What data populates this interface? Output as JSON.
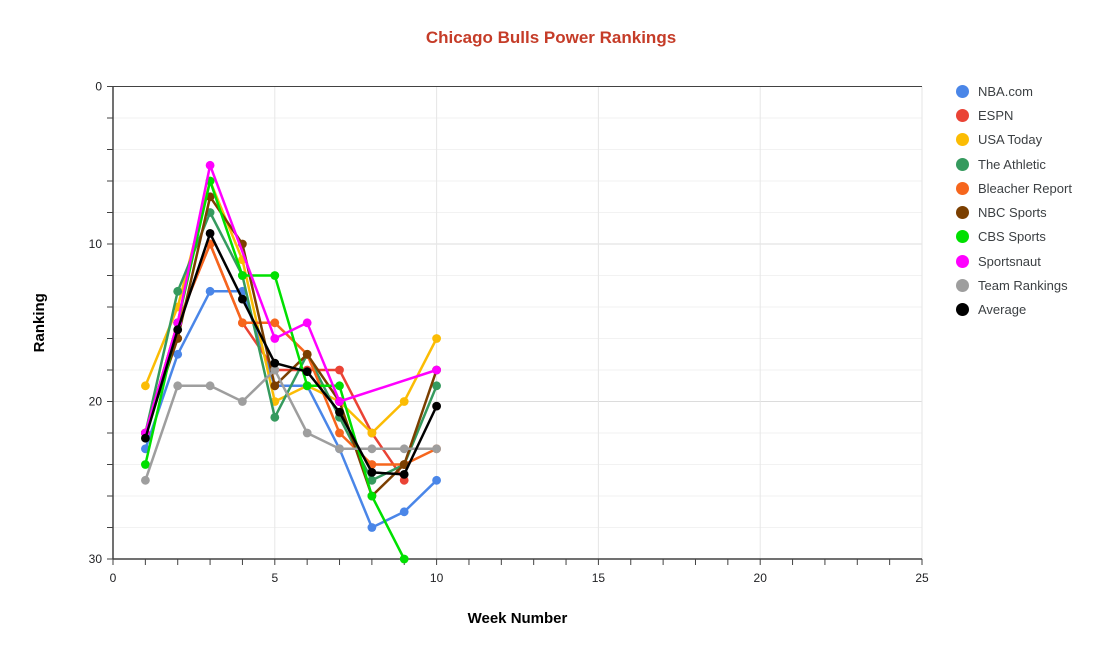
{
  "chart_data": {
    "type": "line",
    "title": "Chicago Bulls Power Rankings",
    "title_color": "#c53c28",
    "xlabel": "Week Number",
    "ylabel": "Ranking",
    "x": [
      1,
      2,
      3,
      4,
      5,
      6,
      7,
      8,
      9,
      10
    ],
    "xlim": [
      0,
      25
    ],
    "ylim": [
      0,
      30
    ],
    "y_axis_inverted": true,
    "grid": true,
    "x_major_ticks": [
      0,
      5,
      10,
      15,
      20,
      25
    ],
    "y_major_ticks": [
      0,
      10,
      20,
      30
    ],
    "x_minor_tick_step": 1,
    "y_minor_tick_step": 2,
    "legend_position": "right",
    "series": [
      {
        "name": "NBA.com",
        "color": "#4a86e8",
        "values": [
          23,
          17,
          13,
          13,
          19,
          19,
          23,
          28,
          27,
          25
        ]
      },
      {
        "name": "ESPN",
        "color": "#ea4335",
        "values": [
          22,
          15,
          10,
          15,
          18,
          18,
          18,
          22,
          25,
          null
        ]
      },
      {
        "name": "USA Today",
        "color": "#fbbc04",
        "values": [
          19,
          14,
          6,
          11,
          20,
          19,
          20,
          22,
          20,
          16
        ]
      },
      {
        "name": "The Athletic",
        "color": "#359a5e",
        "values": [
          22,
          13,
          8,
          12,
          21,
          17,
          21,
          25,
          24,
          19
        ]
      },
      {
        "name": "Bleacher Report",
        "color": "#f6661d",
        "values": [
          22,
          15,
          10,
          15,
          15,
          17,
          22,
          24,
          24,
          23
        ]
      },
      {
        "name": "NBC Sports",
        "color": "#7b3f00",
        "values": [
          22,
          16,
          7,
          10,
          19,
          17,
          20,
          26,
          24,
          18
        ]
      },
      {
        "name": "CBS Sports",
        "color": "#00e000",
        "values": [
          24,
          15,
          6,
          12,
          12,
          19,
          19,
          26,
          30,
          null
        ]
      },
      {
        "name": "Sportsnaut",
        "color": "#ff00ff",
        "values": [
          22,
          15,
          5,
          null,
          16,
          15,
          20,
          null,
          null,
          18
        ]
      },
      {
        "name": "Team Rankings",
        "color": "#9e9e9e",
        "values": [
          25,
          19,
          19,
          20,
          18,
          22,
          23,
          23,
          23,
          23
        ]
      },
      {
        "name": "Average",
        "color": "#000000",
        "values": [
          22.33,
          15.44,
          9.33,
          13.5,
          17.56,
          18.11,
          20.67,
          24.5,
          24.63,
          20.29
        ]
      }
    ]
  }
}
